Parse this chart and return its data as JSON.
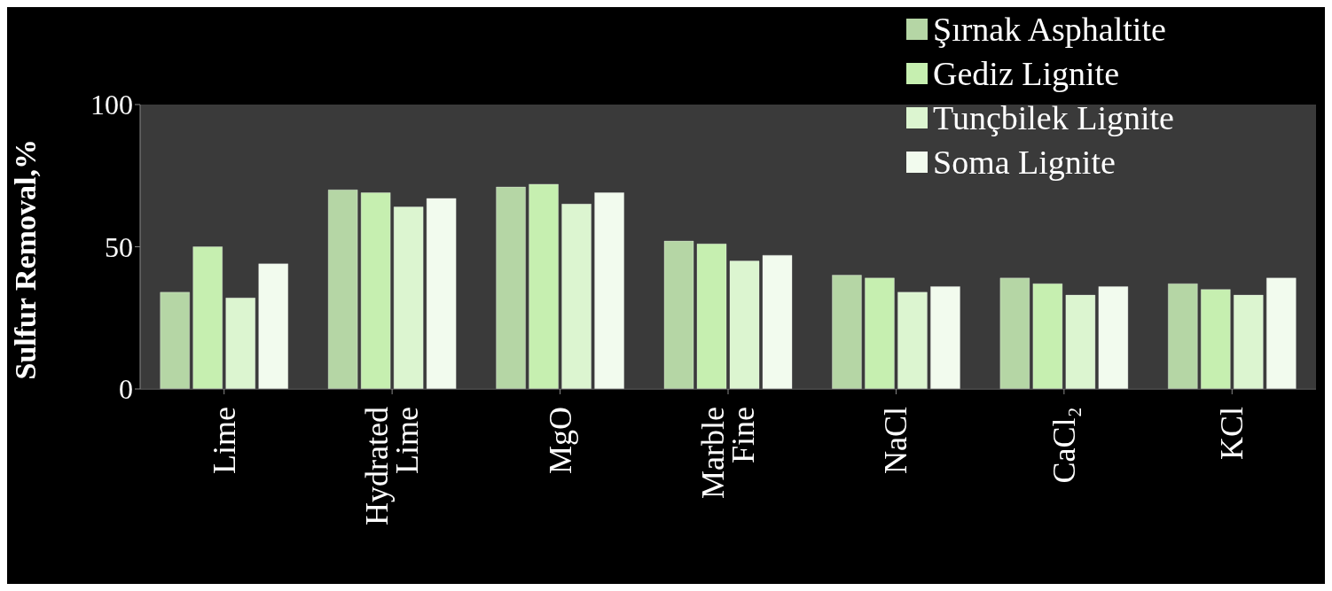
{
  "chart_data": {
    "type": "bar",
    "ylabel": "Sulfur Removal,%",
    "categories": [
      "Lime",
      "Hydrated Lime",
      "MgO",
      "Marble Fine",
      "NaCl",
      "CaCl₂",
      "KCl"
    ],
    "series": [
      {
        "name": "Şırnak Asphaltite",
        "color": "#b5d6a5",
        "values": [
          34,
          70,
          71,
          52,
          40,
          39,
          37
        ]
      },
      {
        "name": "Gediz Lignite",
        "color": "#c6efb0",
        "values": [
          50,
          69,
          72,
          51,
          39,
          37,
          35
        ]
      },
      {
        "name": "Tunçbilek Lignite",
        "color": "#dcf5d0",
        "values": [
          32,
          64,
          65,
          45,
          34,
          33,
          33
        ]
      },
      {
        "name": "Soma Lignite",
        "color": "#f2fbee",
        "values": [
          44,
          67,
          69,
          47,
          36,
          36,
          39
        ]
      }
    ],
    "ylim": [
      0,
      100
    ],
    "yticks": [
      0,
      50,
      100
    ],
    "legend": "top right"
  }
}
